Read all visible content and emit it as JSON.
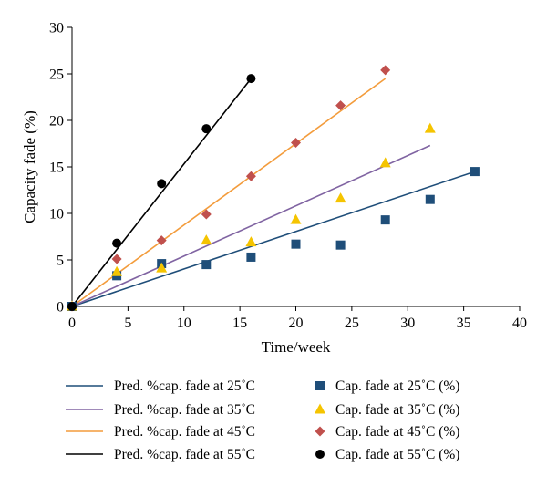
{
  "chart_data": {
    "type": "scatter",
    "xlabel": "Time/week",
    "ylabel": "Capacity fade (%)",
    "xlim": [
      0,
      40
    ],
    "ylim": [
      0,
      30
    ],
    "xticks": [
      0,
      5,
      10,
      15,
      20,
      25,
      30,
      35,
      40
    ],
    "yticks": [
      0,
      5,
      10,
      15,
      20,
      25,
      30
    ],
    "grid": false,
    "legend_position": "bottom",
    "lines": [
      {
        "name": "Pred. %cap. fade at 25˚C",
        "color": "#1f4e79",
        "x": [
          0,
          36
        ],
        "y": [
          0,
          14.5
        ]
      },
      {
        "name": "Pred. %cap. fade at 35˚C",
        "color": "#8064a2",
        "x": [
          0,
          32
        ],
        "y": [
          0,
          17.3
        ]
      },
      {
        "name": "Pred. %cap. fade at 45˚C",
        "color": "#f39c3c",
        "x": [
          0,
          28
        ],
        "y": [
          0,
          24.5
        ]
      },
      {
        "name": "Pred. %cap. fade at 55˚C",
        "color": "#000000",
        "x": [
          0,
          16
        ],
        "y": [
          0,
          24.5
        ]
      }
    ],
    "series": [
      {
        "name": "Cap. fade at 25˚C (%)",
        "color": "#1f4e79",
        "marker": "square",
        "x": [
          0,
          4,
          8,
          12,
          16,
          20,
          24,
          28,
          32,
          36
        ],
        "y": [
          0,
          3.3,
          4.6,
          4.5,
          5.3,
          6.7,
          6.6,
          9.3,
          11.5,
          14.5
        ]
      },
      {
        "name": "Cap. fade at 35˚C (%)",
        "color": "#f5c400",
        "marker": "triangle",
        "x": [
          0,
          4,
          8,
          12,
          16,
          20,
          24,
          28,
          32
        ],
        "y": [
          0,
          3.7,
          4.1,
          7.1,
          6.9,
          9.3,
          11.6,
          15.4,
          19.1
        ]
      },
      {
        "name": "Cap. fade at 45˚C (%)",
        "color": "#c0504d",
        "marker": "diamond",
        "x": [
          0,
          4,
          8,
          12,
          16,
          20,
          24,
          28
        ],
        "y": [
          0,
          5.1,
          7.1,
          9.9,
          14.0,
          17.6,
          21.6,
          25.4
        ]
      },
      {
        "name": "Cap. fade at 55˚C (%)",
        "color": "#000000",
        "marker": "circle",
        "x": [
          0,
          4,
          8,
          12,
          16
        ],
        "y": [
          0,
          6.8,
          13.2,
          19.1,
          24.5
        ]
      }
    ]
  }
}
